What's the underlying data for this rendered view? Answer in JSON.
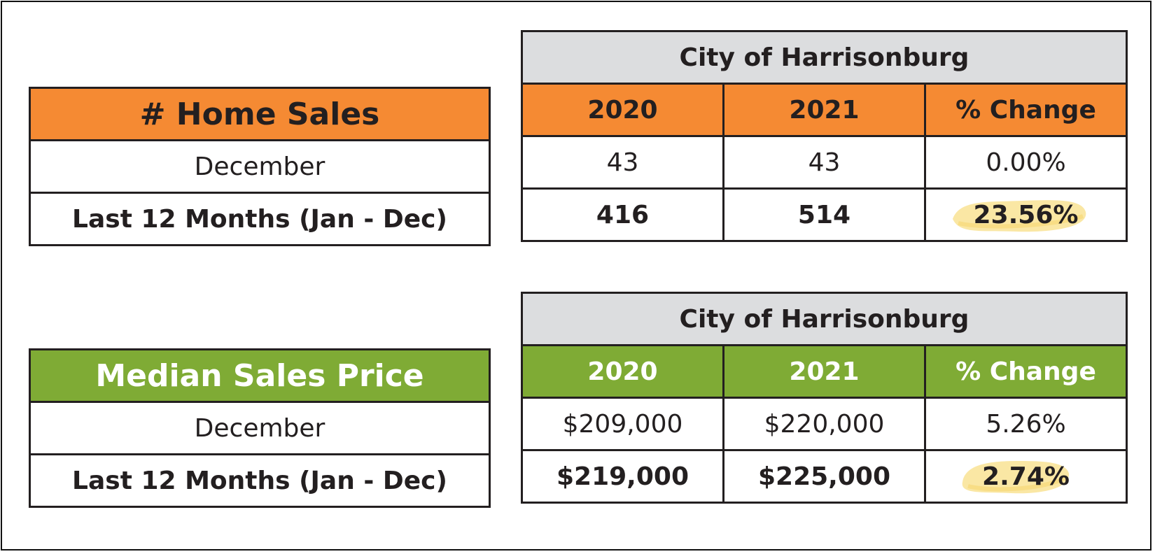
{
  "home_sales": {
    "title": "# Home Sales",
    "rows": [
      {
        "label": "December"
      },
      {
        "label": "Last 12 Months (Jan - Dec)"
      }
    ]
  },
  "home_sales_city": {
    "region": "City of Harrisonburg",
    "headers": [
      "2020",
      "2021",
      "% Change"
    ],
    "rows": [
      {
        "v2020": "43",
        "v2021": "43",
        "change": "0.00%"
      },
      {
        "v2020": "416",
        "v2021": "514",
        "change": "23.56%"
      }
    ]
  },
  "median_price": {
    "title": "Median Sales Price",
    "rows": [
      {
        "label": "December"
      },
      {
        "label": "Last 12 Months (Jan - Dec)"
      }
    ]
  },
  "median_price_city": {
    "region": "City of Harrisonburg",
    "headers": [
      "2020",
      "2021",
      "% Change"
    ],
    "rows": [
      {
        "v2020": "$209,000",
        "v2021": "$220,000",
        "change": "5.26%"
      },
      {
        "v2020": "$219,000",
        "v2021": "$225,000",
        "change": "2.74%"
      }
    ]
  },
  "colors": {
    "orange": "#f58a33",
    "green": "#7fab35",
    "gray": "#dcdddf",
    "highlight": "#f9e49a"
  }
}
